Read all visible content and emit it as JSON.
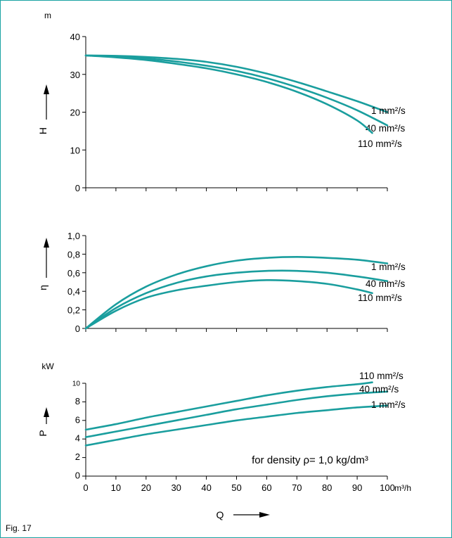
{
  "figure_caption": "Fig. 17",
  "density_note": "for density ρ= 1,0 kg/dm³",
  "x_axis": {
    "label": "Q",
    "unit": "m³/h",
    "ticks": [
      0,
      10,
      20,
      30,
      40,
      50,
      60,
      70,
      80,
      90,
      100
    ],
    "range": [
      0,
      100
    ]
  },
  "chart_data": [
    {
      "type": "line",
      "ylabel": "H",
      "unit": "m",
      "ylim": [
        0,
        40
      ],
      "yticks": [
        "0",
        "10",
        "20",
        "30",
        "40"
      ],
      "yticks_values": [
        0,
        10,
        20,
        30,
        40
      ],
      "series": [
        {
          "name": "1 mm²/s",
          "x": [
            0,
            10,
            20,
            30,
            40,
            50,
            60,
            70,
            80,
            90,
            100
          ],
          "values": [
            35.0,
            34.9,
            34.6,
            34.1,
            33.3,
            32.0,
            30.2,
            28.0,
            25.5,
            22.9,
            20.0
          ]
        },
        {
          "name": "40 mm²/s",
          "x": [
            0,
            10,
            20,
            30,
            40,
            50,
            60,
            70,
            80,
            90,
            100
          ],
          "values": [
            35.0,
            34.7,
            34.2,
            33.4,
            32.3,
            30.9,
            29.0,
            26.6,
            23.8,
            20.5,
            16.5
          ]
        },
        {
          "name": "110 mm²/s",
          "x": [
            0,
            10,
            20,
            30,
            40,
            50,
            60,
            70,
            80,
            90,
            95
          ],
          "values": [
            35.0,
            34.5,
            33.8,
            32.8,
            31.6,
            30.0,
            28.0,
            25.4,
            22.1,
            17.8,
            14.5
          ]
        }
      ]
    },
    {
      "type": "line",
      "ylabel": "η",
      "unit": "",
      "ylim": [
        0,
        1.0
      ],
      "yticks": [
        "0",
        "0,2",
        "0,4",
        "0,6",
        "0,8",
        "1,0"
      ],
      "yticks_values": [
        0,
        0.2,
        0.4,
        0.6,
        0.8,
        1.0
      ],
      "series": [
        {
          "name": "1 mm²/s",
          "x": [
            0,
            10,
            20,
            30,
            40,
            50,
            60,
            70,
            80,
            90,
            100
          ],
          "values": [
            0.0,
            0.26,
            0.45,
            0.58,
            0.67,
            0.73,
            0.76,
            0.77,
            0.76,
            0.74,
            0.7
          ]
        },
        {
          "name": "40 mm²/s",
          "x": [
            0,
            10,
            20,
            30,
            40,
            50,
            60,
            70,
            80,
            90,
            100
          ],
          "values": [
            0.0,
            0.22,
            0.38,
            0.49,
            0.56,
            0.6,
            0.62,
            0.62,
            0.6,
            0.56,
            0.51
          ]
        },
        {
          "name": "110 mm²/s",
          "x": [
            0,
            10,
            20,
            30,
            40,
            50,
            60,
            70,
            80,
            90,
            95
          ],
          "values": [
            0.0,
            0.19,
            0.33,
            0.41,
            0.46,
            0.5,
            0.52,
            0.51,
            0.48,
            0.42,
            0.38
          ]
        }
      ]
    },
    {
      "type": "line",
      "ylabel": "P",
      "unit": "kW",
      "ylim": [
        0,
        10
      ],
      "yticks": [
        "0",
        "2",
        "4",
        "6",
        "8",
        "10"
      ],
      "yticks_values": [
        0,
        2,
        4,
        6,
        8,
        10
      ],
      "series": [
        {
          "name": "110 mm²/s",
          "x": [
            0,
            10,
            20,
            30,
            40,
            50,
            60,
            70,
            80,
            90,
            95
          ],
          "values": [
            5.0,
            5.6,
            6.3,
            6.9,
            7.5,
            8.1,
            8.7,
            9.2,
            9.6,
            9.9,
            10.1
          ]
        },
        {
          "name": "40 mm²/s",
          "x": [
            0,
            10,
            20,
            30,
            40,
            50,
            60,
            70,
            80,
            90,
            100
          ],
          "values": [
            4.2,
            4.8,
            5.4,
            6.0,
            6.6,
            7.2,
            7.7,
            8.2,
            8.6,
            8.9,
            9.1
          ]
        },
        {
          "name": "1 mm²/s",
          "x": [
            0,
            10,
            20,
            30,
            40,
            50,
            60,
            70,
            80,
            90,
            100
          ],
          "values": [
            3.3,
            3.9,
            4.5,
            5.0,
            5.5,
            6.0,
            6.4,
            6.8,
            7.1,
            7.4,
            7.6
          ]
        }
      ]
    }
  ],
  "colors": {
    "curve": "#1a9e9e",
    "frame": "#1aa3a3",
    "axis": "#000000"
  }
}
